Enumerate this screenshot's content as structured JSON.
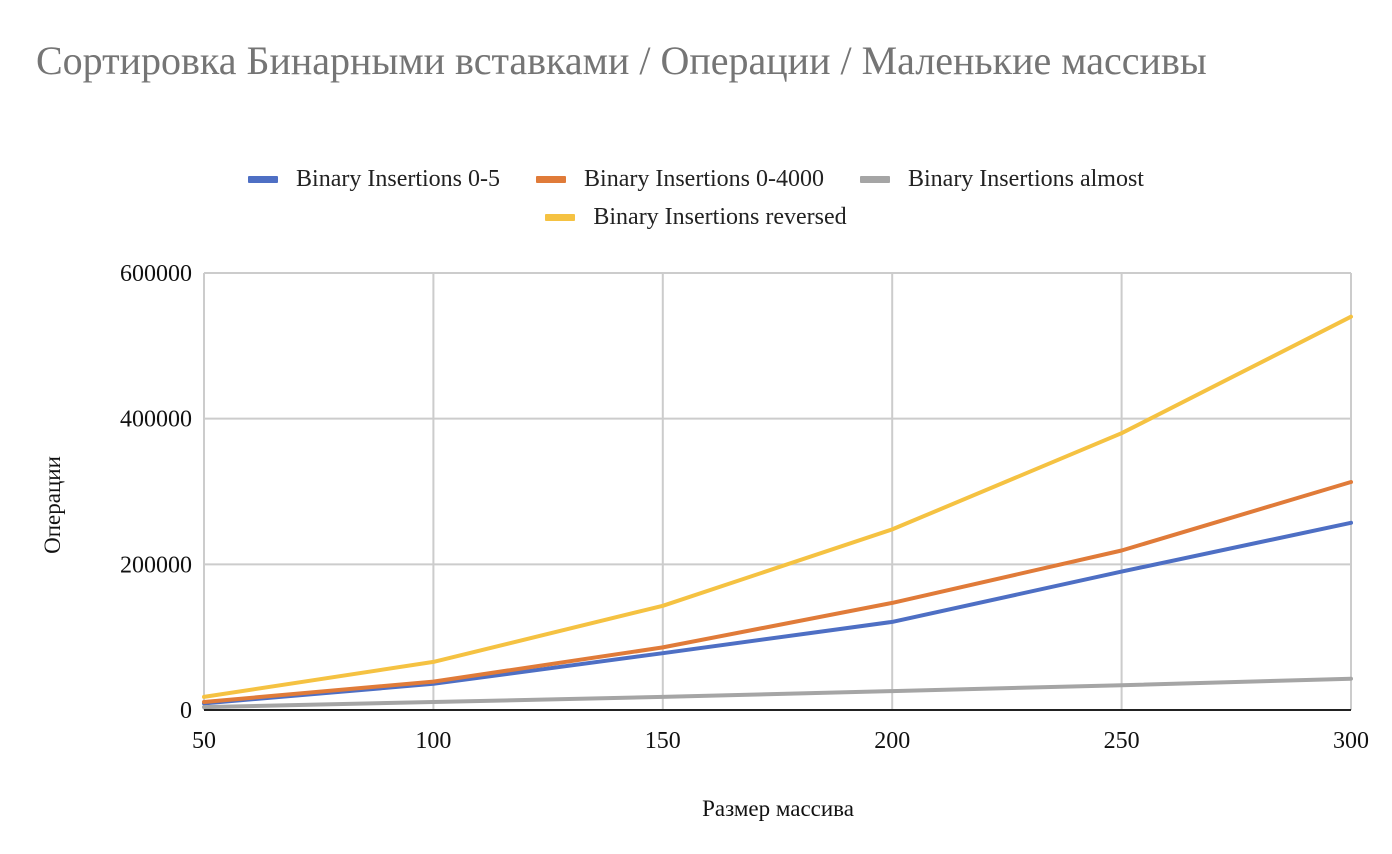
{
  "chart_data": {
    "type": "line",
    "title": "Сортировка Бинарными вставками / Операции / Маленькие массивы",
    "xlabel": "Размер массива",
    "ylabel": "Операции",
    "x": [
      50,
      100,
      150,
      200,
      250,
      300
    ],
    "xlim": [
      50,
      300
    ],
    "ylim": [
      0,
      600000
    ],
    "x_ticks": [
      "50",
      "100",
      "150",
      "200",
      "250",
      "300"
    ],
    "y_ticks": [
      "0",
      "200000",
      "400000",
      "600000"
    ],
    "grid": true,
    "legend_position": "top",
    "series": [
      {
        "name": "Binary Insertions 0-5",
        "color": "#4e6fc4",
        "values": [
          9000,
          36000,
          78000,
          121000,
          190000,
          257000
        ]
      },
      {
        "name": "Binary Insertions 0-4000",
        "color": "#e07b39",
        "values": [
          11000,
          39000,
          86000,
          147000,
          219000,
          313000
        ]
      },
      {
        "name": "Binary Insertions almost",
        "color": "#a5a5a5",
        "values": [
          4000,
          11000,
          18000,
          26000,
          34000,
          43000
        ]
      },
      {
        "name": "Binary Insertions reversed",
        "color": "#f5c242",
        "values": [
          18000,
          66000,
          143000,
          248000,
          380000,
          540000
        ]
      }
    ]
  }
}
